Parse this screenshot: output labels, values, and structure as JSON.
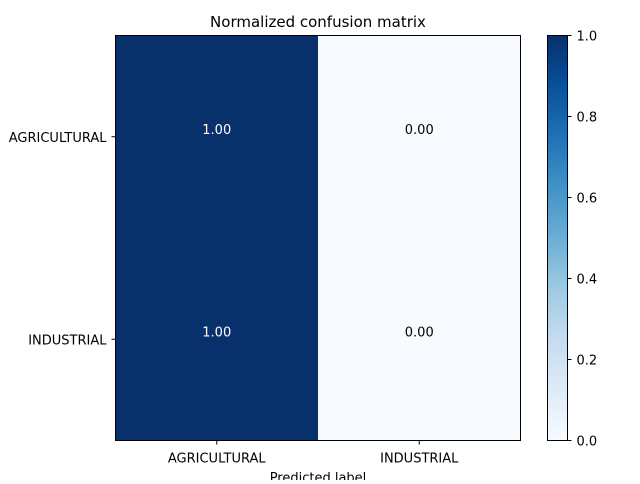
{
  "chart_data": {
    "type": "heatmap",
    "title": "Normalized confusion matrix",
    "xlabel": "Predicted label",
    "ylabel": "",
    "x_categories": [
      "AGRICULTURAL",
      "INDUSTRIAL"
    ],
    "y_categories": [
      "AGRICULTURAL",
      "INDUSTRIAL"
    ],
    "values": [
      [
        1.0,
        0.0
      ],
      [
        1.0,
        0.0
      ]
    ],
    "value_labels": [
      [
        "1.00",
        "0.00"
      ],
      [
        "1.00",
        "0.00"
      ]
    ],
    "colormap": "Blues",
    "colormap_low": "#f7fbff",
    "colormap_high": "#08306b",
    "text_color_on_dark": "#ffffff",
    "text_color_on_light": "#000000",
    "colorbar": {
      "range": [
        0.0,
        1.0
      ],
      "ticks": [
        0.0,
        0.2,
        0.4,
        0.6,
        0.8,
        1.0
      ],
      "tick_labels": [
        "0.0",
        "0.2",
        "0.4",
        "0.6",
        "0.8",
        "1.0"
      ]
    }
  }
}
